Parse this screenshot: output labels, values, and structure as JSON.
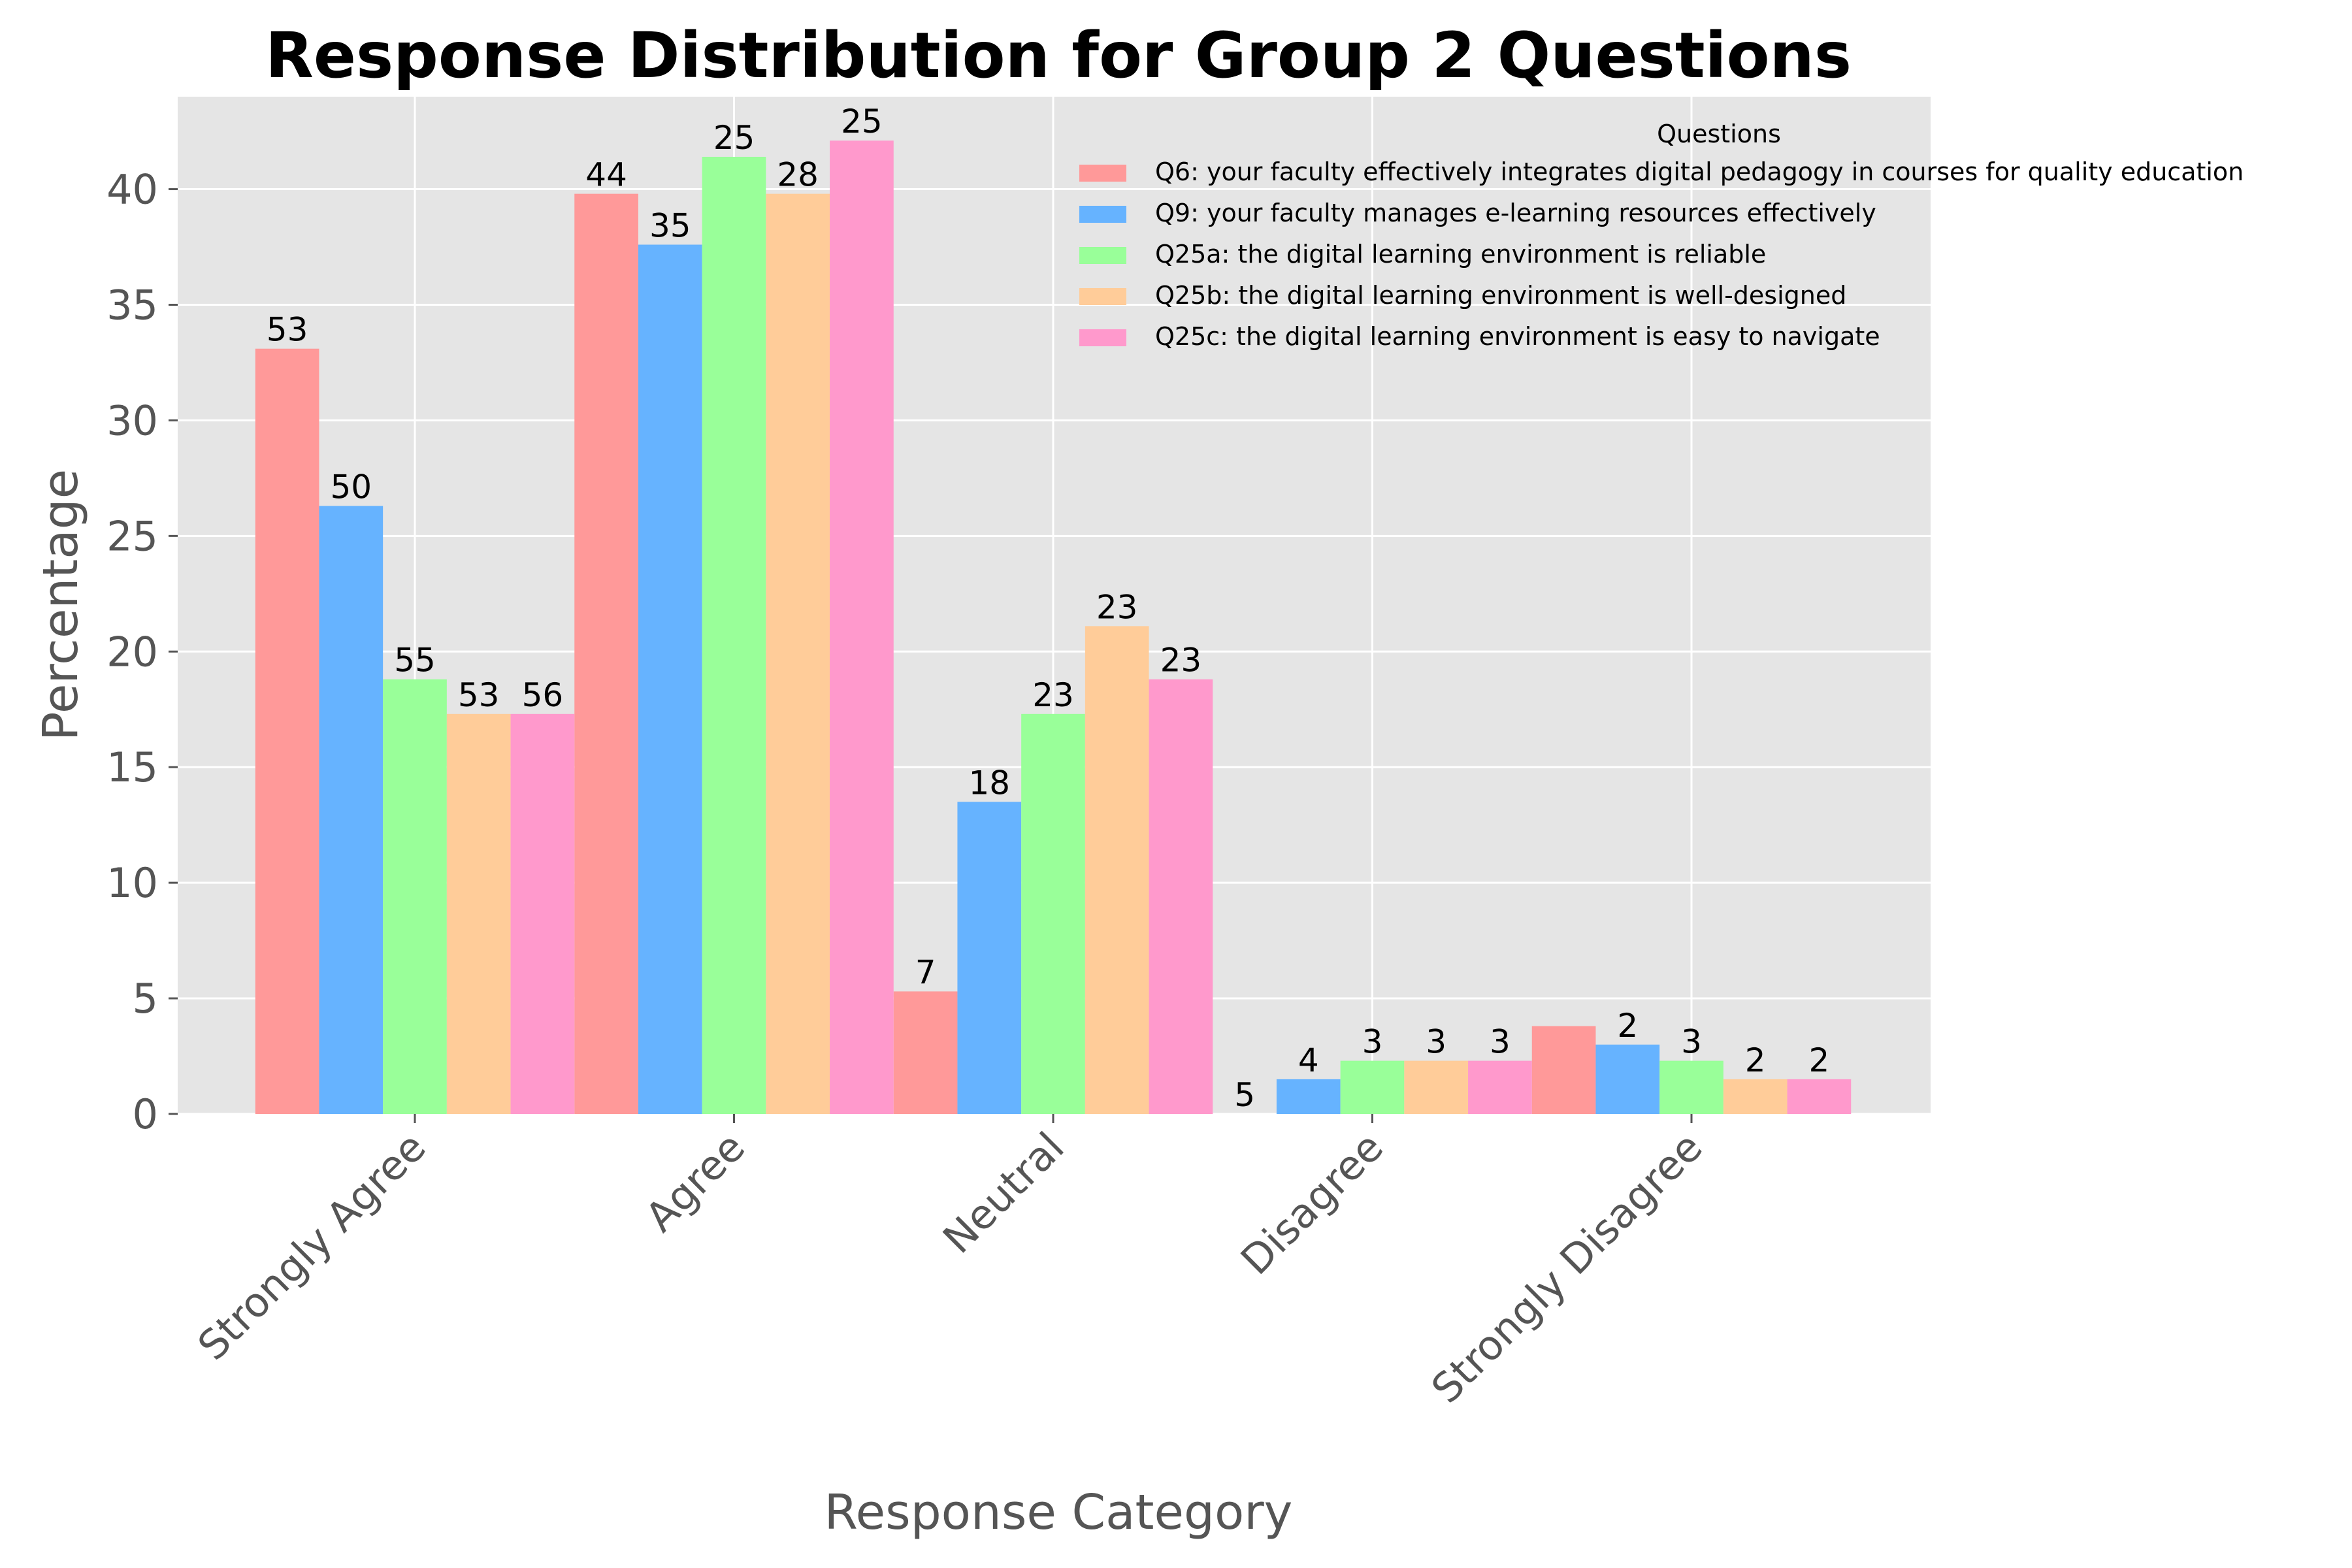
{
  "chart_data": {
    "type": "bar",
    "title": "Response Distribution for Group 2 Questions",
    "xlabel": "Response Category",
    "ylabel": "Percentage",
    "categories": [
      "Strongly Agree",
      "Agree",
      "Neutral",
      "Disagree",
      "Strongly Disagree"
    ],
    "ylim": [
      0,
      44
    ],
    "yticks": [
      0,
      5,
      10,
      15,
      20,
      25,
      30,
      35,
      40
    ],
    "grid": true,
    "legend": {
      "title": "Questions",
      "placement": "top-right"
    },
    "series": [
      {
        "name": "Q6: your faculty effectively integrates digital pedagogy in courses for quality education",
        "color": "#ff9999",
        "values": [
          33.1,
          39.8,
          5.3,
          0.0,
          3.8
        ],
        "labels": [
          "53",
          "44",
          "7",
          "5",
          ""
        ]
      },
      {
        "name": "Q9: your faculty manages e-learning resources effectively",
        "color": "#66b3ff",
        "values": [
          26.3,
          37.6,
          13.5,
          1.5,
          3.0
        ],
        "labels": [
          "50",
          "35",
          "18",
          "4",
          "2"
        ]
      },
      {
        "name": "Q25a: the digital learning environment is reliable",
        "color": "#99ff99",
        "values": [
          18.8,
          41.4,
          17.3,
          2.3,
          2.3
        ],
        "labels": [
          "55",
          "25",
          "23",
          "3",
          "3"
        ]
      },
      {
        "name": "Q25b: the digital learning environment is well-designed",
        "color": "#ffcc99",
        "values": [
          17.3,
          39.8,
          21.1,
          2.3,
          1.5
        ],
        "labels": [
          "53",
          "28",
          "23",
          "3",
          "2"
        ]
      },
      {
        "name": "Q25c: the digital learning environment is easy to navigate",
        "color": "#ff99cc",
        "values": [
          17.3,
          42.1,
          18.8,
          2.3,
          1.5
        ],
        "labels": [
          "56",
          "25",
          "23",
          "3",
          "2"
        ]
      }
    ]
  }
}
